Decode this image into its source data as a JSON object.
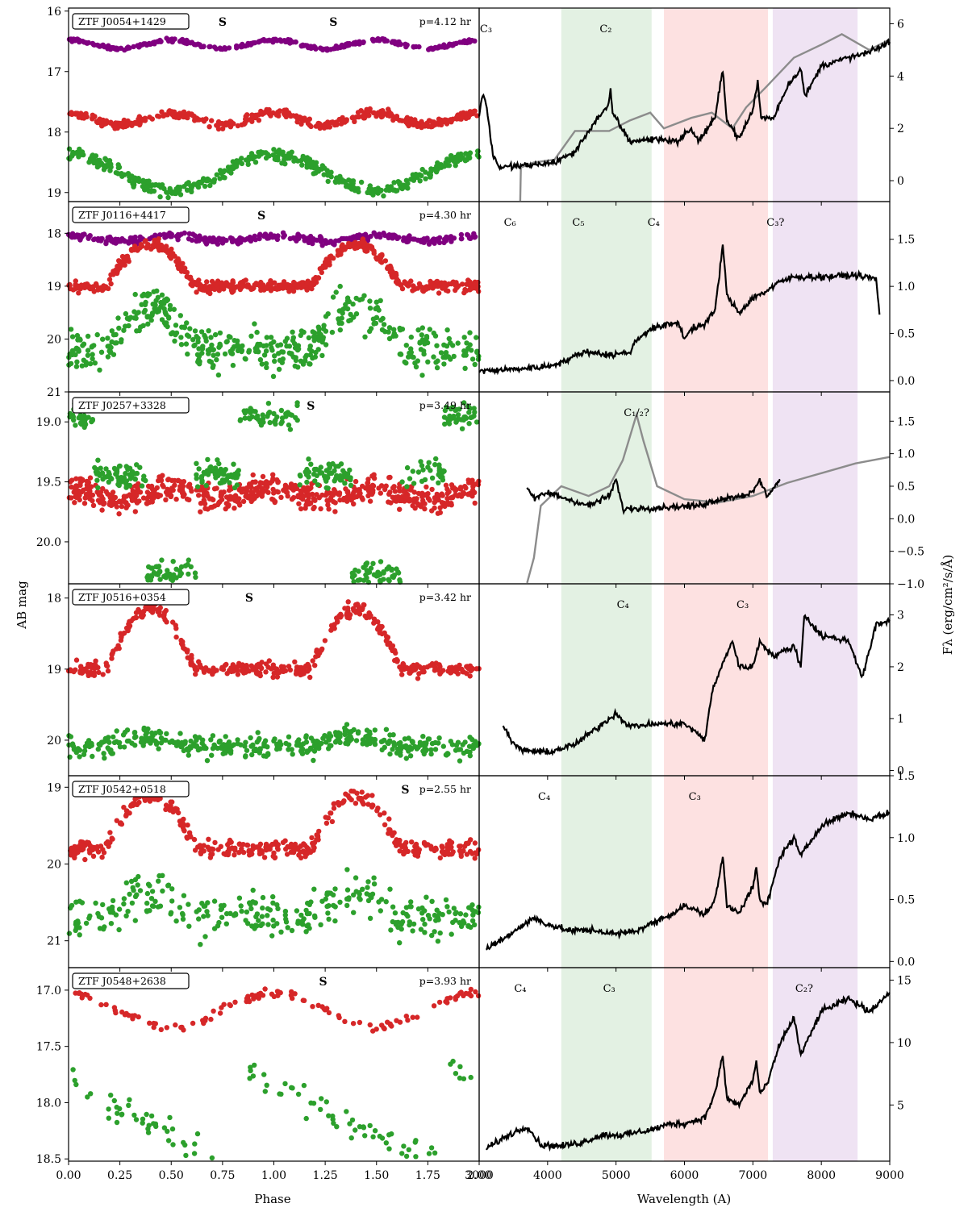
{
  "figure": {
    "left_ylabel": "AB mag",
    "left_xlabel": "Phase",
    "right_xlabel": "Wavelength (A)",
    "right_ylabel": "Fλ (erg/cm²/s/Å)",
    "colors": {
      "purple": "#800080",
      "red": "#d62728",
      "green": "#2ca02c",
      "black": "#000000",
      "gray": "#8c8c8c",
      "band_green": "#e3f1e3",
      "band_red": "#fde1e1",
      "band_purple": "#efe3f3"
    }
  },
  "chart_data": [
    {
      "type": "scatter",
      "title": "ZTF J0054+1429",
      "period": "p=4.12 hr",
      "s_markers": [
        "S",
        "S"
      ],
      "xlim": [
        0,
        2
      ],
      "ylim": [
        19.15,
        15.95
      ],
      "y_ticks": [
        "16",
        "17",
        "18",
        "19"
      ],
      "series": [
        {
          "color": "purple",
          "base": 16.55,
          "amp": 0.07,
          "shape": "sine2",
          "count": 300,
          "noise": 0.02
        },
        {
          "color": "red",
          "base": 17.78,
          "amp": 0.1,
          "shape": "sine2",
          "count": 400,
          "noise": 0.05
        },
        {
          "color": "green",
          "base": 18.67,
          "amp": 0.3,
          "shape": "sine1",
          "count": 400,
          "noise": 0.08
        }
      ]
    },
    {
      "type": "line",
      "band_labels": [
        "C₃",
        "C₂"
      ],
      "xlim": [
        3000,
        9000
      ],
      "ylim": [
        -0.8,
        6.6
      ],
      "y_ticks": [
        "0",
        "2",
        "4",
        "6"
      ],
      "spectrum_points": [
        [
          3000,
          2.5
        ],
        [
          3050,
          3.3
        ],
        [
          3100,
          3.0
        ],
        [
          3200,
          1.0
        ],
        [
          3300,
          0.5
        ],
        [
          3500,
          0.55
        ],
        [
          3800,
          0.6
        ],
        [
          4100,
          0.7
        ],
        [
          4400,
          1.1
        ],
        [
          4700,
          2.3
        ],
        [
          4880,
          2.8
        ],
        [
          4920,
          3.4
        ],
        [
          4950,
          2.6
        ],
        [
          5200,
          1.5
        ],
        [
          5600,
          1.6
        ],
        [
          5900,
          1.5
        ],
        [
          6100,
          2.0
        ],
        [
          6200,
          1.5
        ],
        [
          6450,
          2.4
        ],
        [
          6560,
          4.3
        ],
        [
          6620,
          2.3
        ],
        [
          6800,
          1.6
        ],
        [
          7000,
          2.7
        ],
        [
          7070,
          3.8
        ],
        [
          7120,
          2.4
        ],
        [
          7300,
          2.4
        ],
        [
          7500,
          3.6
        ],
        [
          7700,
          4.3
        ],
        [
          7760,
          3.2
        ],
        [
          8000,
          4.4
        ],
        [
          8400,
          4.7
        ],
        [
          8700,
          4.9
        ],
        [
          9000,
          5.3
        ]
      ],
      "comparison_points": [
        [
          3600,
          -0.8
        ],
        [
          3610,
          0.5
        ],
        [
          3800,
          0.7
        ],
        [
          4100,
          0.8
        ],
        [
          4400,
          1.9
        ],
        [
          4900,
          1.9
        ],
        [
          5200,
          2.3
        ],
        [
          5500,
          2.6
        ],
        [
          5700,
          2.0
        ],
        [
          6100,
          2.4
        ],
        [
          6400,
          2.6
        ],
        [
          6700,
          2.0
        ],
        [
          6900,
          2.8
        ],
        [
          7200,
          3.6
        ],
        [
          7600,
          4.7
        ],
        [
          8000,
          5.2
        ],
        [
          8300,
          5.6
        ],
        [
          8700,
          5.0
        ],
        [
          9000,
          5.4
        ]
      ]
    },
    {
      "type": "scatter",
      "title": "ZTF J0116+4417",
      "period": "p=4.30 hr",
      "s_markers": [
        "S"
      ],
      "xlim": [
        0,
        2
      ],
      "ylim": [
        21.0,
        17.4
      ],
      "y_ticks": [
        "18",
        "19",
        "20",
        "21"
      ],
      "series": [
        {
          "color": "purple",
          "base": 18.1,
          "amp": 0.05,
          "shape": "sine2",
          "count": 300,
          "noise": 0.05
        },
        {
          "color": "red",
          "base": 19.0,
          "amp": 0.8,
          "shape": "hump",
          "count": 500,
          "noise": 0.08
        },
        {
          "color": "green",
          "base": 20.2,
          "amp": 0.8,
          "shape": "hump",
          "count": 450,
          "noise": 0.3
        }
      ]
    },
    {
      "type": "line",
      "band_labels": [
        "C₆",
        "C₅",
        "C₄",
        "C₃?"
      ],
      "xlim": [
        3000,
        9000
      ],
      "ylim": [
        -0.12,
        1.9
      ],
      "y_ticks": [
        "0.0",
        "0.5",
        "1.0",
        "1.5"
      ],
      "spectrum_points": [
        [
          3000,
          0.1
        ],
        [
          3500,
          0.12
        ],
        [
          4000,
          0.15
        ],
        [
          4300,
          0.22
        ],
        [
          4500,
          0.3
        ],
        [
          4700,
          0.3
        ],
        [
          4900,
          0.27
        ],
        [
          5200,
          0.3
        ],
        [
          5300,
          0.43
        ],
        [
          5500,
          0.55
        ],
        [
          5700,
          0.58
        ],
        [
          5900,
          0.62
        ],
        [
          6000,
          0.45
        ],
        [
          6100,
          0.55
        ],
        [
          6300,
          0.6
        ],
        [
          6450,
          0.75
        ],
        [
          6560,
          1.45
        ],
        [
          6620,
          0.9
        ],
        [
          6800,
          0.72
        ],
        [
          7000,
          0.88
        ],
        [
          7200,
          0.95
        ],
        [
          7400,
          1.05
        ],
        [
          7600,
          1.1
        ],
        [
          8000,
          1.1
        ],
        [
          8500,
          1.12
        ],
        [
          8800,
          1.08
        ],
        [
          8850,
          0.7
        ]
      ]
    },
    {
      "type": "scatter",
      "title": "ZTF J0257+3328",
      "period": "p=3.49 hr",
      "s_markers": [
        "S"
      ],
      "xlim": [
        0,
        2
      ],
      "ylim": [
        20.35,
        18.75
      ],
      "y_ticks": [
        "19.0",
        "19.5",
        "20.0"
      ],
      "series": [
        {
          "color": "red",
          "base": 19.6,
          "amp": 0.05,
          "shape": "sine2",
          "count": 600,
          "noise": 0.08
        },
        {
          "color": "green",
          "base": 19.5,
          "amp": 0.55,
          "shape": "eclipse",
          "count": 450,
          "noise": 0.08
        }
      ]
    },
    {
      "type": "line",
      "band_labels": [
        "C₁/₂?"
      ],
      "xlim": [
        3000,
        9000
      ],
      "ylim": [
        -1.0,
        1.95
      ],
      "y_ticks": [
        "−1.0",
        "−0.5",
        "0.0",
        "0.5",
        "1.0",
        "1.5"
      ],
      "spectrum_points": [
        [
          3700,
          0.5
        ],
        [
          3800,
          0.3
        ],
        [
          4000,
          0.4
        ],
        [
          4300,
          0.3
        ],
        [
          4600,
          0.2
        ],
        [
          4900,
          0.35
        ],
        [
          5000,
          0.6
        ],
        [
          5100,
          0.15
        ],
        [
          6200,
          0.2
        ],
        [
          6500,
          0.3
        ],
        [
          6800,
          0.35
        ],
        [
          7000,
          0.4
        ],
        [
          7100,
          0.6
        ],
        [
          7200,
          0.35
        ],
        [
          7400,
          0.6
        ]
      ],
      "comparison_points": [
        [
          3700,
          -1.0
        ],
        [
          3800,
          -0.6
        ],
        [
          3900,
          0.2
        ],
        [
          4200,
          0.5
        ],
        [
          4600,
          0.35
        ],
        [
          4900,
          0.5
        ],
        [
          5100,
          0.9
        ],
        [
          5300,
          1.6
        ],
        [
          5400,
          1.2
        ],
        [
          5600,
          0.5
        ],
        [
          6000,
          0.3
        ],
        [
          6500,
          0.25
        ],
        [
          7000,
          0.35
        ],
        [
          7500,
          0.55
        ],
        [
          8000,
          0.7
        ],
        [
          8500,
          0.85
        ],
        [
          9000,
          0.95
        ]
      ]
    },
    {
      "type": "scatter",
      "title": "ZTF J0516+0354",
      "period": "p=3.42 hr",
      "s_markers": [
        "S"
      ],
      "xlim": [
        0,
        2
      ],
      "ylim": [
        20.5,
        17.8
      ],
      "y_ticks": [
        "18",
        "19",
        "20"
      ],
      "series": [
        {
          "color": "red",
          "base": 19.0,
          "amp": 0.85,
          "shape": "hump",
          "count": 400,
          "noise": 0.07
        },
        {
          "color": "green",
          "base": 20.1,
          "amp": 0.15,
          "shape": "hump",
          "count": 400,
          "noise": 0.12
        }
      ]
    },
    {
      "type": "line",
      "band_labels": [
        "C₄",
        "C₃"
      ],
      "xlim": [
        3000,
        9000
      ],
      "ylim": [
        -0.1,
        3.6
      ],
      "y_ticks": [
        "0",
        "1",
        "2",
        "3"
      ],
      "spectrum_points": [
        [
          3350,
          0.9
        ],
        [
          3450,
          0.6
        ],
        [
          3600,
          0.4
        ],
        [
          4000,
          0.35
        ],
        [
          4400,
          0.5
        ],
        [
          4700,
          0.8
        ],
        [
          5000,
          1.1
        ],
        [
          5200,
          0.85
        ],
        [
          5600,
          0.9
        ],
        [
          6000,
          0.9
        ],
        [
          6300,
          0.6
        ],
        [
          6400,
          1.5
        ],
        [
          6600,
          2.2
        ],
        [
          6700,
          2.5
        ],
        [
          6800,
          2.0
        ],
        [
          7000,
          2.0
        ],
        [
          7100,
          2.5
        ],
        [
          7300,
          2.2
        ],
        [
          7600,
          2.4
        ],
        [
          7700,
          2.0
        ],
        [
          7750,
          3.0
        ],
        [
          8000,
          2.6
        ],
        [
          8400,
          2.5
        ],
        [
          8600,
          1.8
        ],
        [
          8800,
          2.8
        ],
        [
          9000,
          2.9
        ]
      ]
    },
    {
      "type": "scatter",
      "title": "ZTF J0542+0518",
      "period": "p=2.55 hr",
      "s_markers": [
        "S"
      ],
      "xlim": [
        0,
        2
      ],
      "ylim": [
        21.35,
        18.85
      ],
      "y_ticks": [
        "19",
        "20",
        "21"
      ],
      "series": [
        {
          "color": "red",
          "base": 19.8,
          "amp": 0.7,
          "shape": "hump",
          "count": 400,
          "noise": 0.08
        },
        {
          "color": "green",
          "base": 20.7,
          "amp": 0.3,
          "shape": "hump",
          "count": 300,
          "noise": 0.2
        }
      ]
    },
    {
      "type": "line",
      "band_labels": [
        "C₄",
        "C₃"
      ],
      "xlim": [
        3000,
        9000
      ],
      "ylim": [
        -0.05,
        1.5
      ],
      "y_ticks": [
        "0.0",
        "0.5",
        "1.0",
        "1.5"
      ],
      "spectrum_points": [
        [
          3100,
          0.1
        ],
        [
          3400,
          0.2
        ],
        [
          3600,
          0.28
        ],
        [
          3800,
          0.35
        ],
        [
          4000,
          0.3
        ],
        [
          4300,
          0.25
        ],
        [
          4700,
          0.25
        ],
        [
          5000,
          0.22
        ],
        [
          5300,
          0.25
        ],
        [
          5500,
          0.3
        ],
        [
          5800,
          0.38
        ],
        [
          6000,
          0.45
        ],
        [
          6300,
          0.38
        ],
        [
          6450,
          0.5
        ],
        [
          6560,
          0.85
        ],
        [
          6620,
          0.45
        ],
        [
          6800,
          0.4
        ],
        [
          7000,
          0.6
        ],
        [
          7050,
          0.75
        ],
        [
          7100,
          0.5
        ],
        [
          7200,
          0.45
        ],
        [
          7400,
          0.85
        ],
        [
          7600,
          1.0
        ],
        [
          7700,
          0.85
        ],
        [
          8000,
          1.1
        ],
        [
          8400,
          1.2
        ],
        [
          8700,
          1.15
        ],
        [
          9000,
          1.2
        ]
      ]
    },
    {
      "type": "scatter",
      "title": "ZTF J0548+2638",
      "period": "p=3.93 hr",
      "s_markers": [
        "S"
      ],
      "xlim": [
        0,
        2
      ],
      "ylim": [
        18.52,
        16.8
      ],
      "y_ticks": [
        "17.0",
        "17.5",
        "18.0",
        "18.5"
      ],
      "series": [
        {
          "color": "red",
          "base": 17.18,
          "amp": 0.15,
          "shape": "sine1",
          "count": 120,
          "noise": 0.03
        },
        {
          "color": "green",
          "base": 18.15,
          "amp": 0.45,
          "shape": "saw",
          "count": 120,
          "noise": 0.1
        }
      ]
    },
    {
      "type": "line",
      "band_labels": [
        "C₄",
        "C₃",
        "C₂?"
      ],
      "xlim": [
        3000,
        9000
      ],
      "ylim": [
        0.5,
        16.0
      ],
      "y_ticks": [
        "5",
        "10",
        "15"
      ],
      "spectrum_points": [
        [
          3100,
          1.5
        ],
        [
          3400,
          2.5
        ],
        [
          3700,
          3.3
        ],
        [
          3900,
          1.8
        ],
        [
          4200,
          1.7
        ],
        [
          4500,
          2.0
        ],
        [
          4800,
          2.6
        ],
        [
          5100,
          2.6
        ],
        [
          5500,
          3.0
        ],
        [
          5800,
          3.5
        ],
        [
          6000,
          3.5
        ],
        [
          6300,
          4.0
        ],
        [
          6450,
          6.0
        ],
        [
          6560,
          9.0
        ],
        [
          6620,
          5.5
        ],
        [
          6800,
          5.0
        ],
        [
          7000,
          7.0
        ],
        [
          7050,
          8.5
        ],
        [
          7100,
          6.0
        ],
        [
          7200,
          6.5
        ],
        [
          7400,
          10.0
        ],
        [
          7600,
          12.0
        ],
        [
          7700,
          9.0
        ],
        [
          8000,
          12.5
        ],
        [
          8400,
          13.5
        ],
        [
          8700,
          12.5
        ],
        [
          9000,
          14.0
        ]
      ]
    }
  ]
}
